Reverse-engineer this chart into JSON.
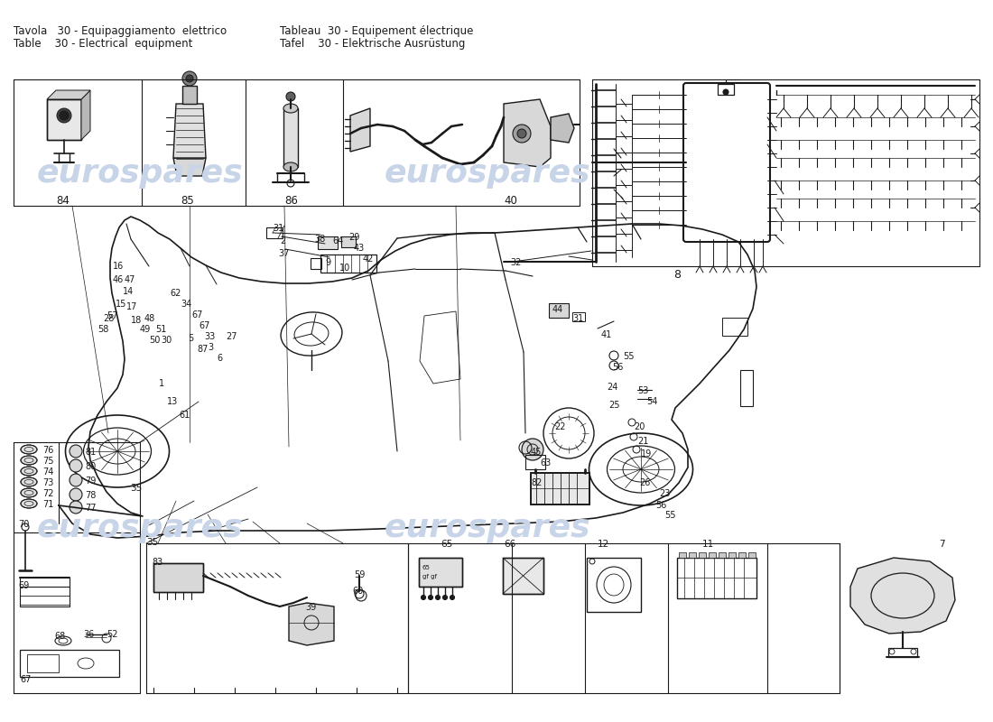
{
  "title_line1_left": "Tavola   30 - Equipaggiamento  elettrico",
  "title_line2_left": "Table    30 - Electrical  equipment",
  "title_line1_right": "Tableau  30 - Equipement électrique",
  "title_line2_right": "Tafel    30 - Elektrische Ausrüstung",
  "bg_color": "#ffffff",
  "line_color": "#1a1a1a",
  "label_color": "#1a1a1a",
  "watermark_color": "#c8d4e8",
  "watermark_text": "eurospares",
  "fig_width": 11.0,
  "fig_height": 8.0,
  "dpi": 100
}
